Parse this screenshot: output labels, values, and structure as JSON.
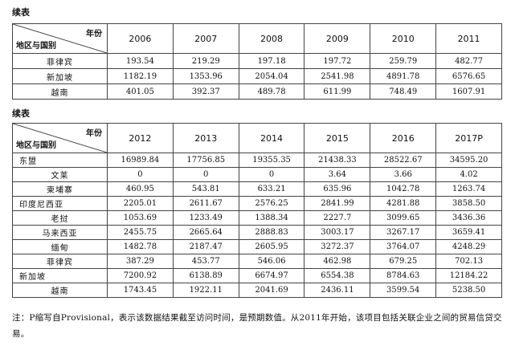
{
  "table1": {
    "caption": "续表",
    "header_top": "年份",
    "header_bottom": "地区与国别",
    "years": [
      "2006",
      "2007",
      "2008",
      "2009",
      "2010",
      "2011"
    ],
    "rows": [
      {
        "name": "菲律宾",
        "values": [
          "193.54",
          "219.29",
          "197.18",
          "197.72",
          "259.79",
          "482.77"
        ]
      },
      {
        "name": "新加坡",
        "values": [
          "1182.19",
          "1353.96",
          "2054.04",
          "2541.98",
          "4891.78",
          "6576.65"
        ]
      },
      {
        "name": "越南",
        "values": [
          "401.05",
          "392.37",
          "489.78",
          "611.99",
          "748.49",
          "1607.91"
        ]
      }
    ]
  },
  "table2": {
    "caption": "续表",
    "header_top": "年份",
    "header_bottom": "地区与国别",
    "years": [
      "2012",
      "2013",
      "2014",
      "2015",
      "2016",
      "2017P"
    ],
    "rows": [
      {
        "name": "东盟",
        "values": [
          "16989.84",
          "17756.85",
          "19355.35",
          "21438.33",
          "28522.67",
          "34595.20"
        ]
      },
      {
        "name": "文莱",
        "values": [
          "0",
          "0",
          "0",
          "3.64",
          "3.66",
          "4.02"
        ]
      },
      {
        "name": "柬埔寨",
        "values": [
          "460.95",
          "543.81",
          "633.21",
          "635.96",
          "1042.78",
          "1263.74"
        ]
      },
      {
        "name": "印度尼西亚",
        "values": [
          "2205.01",
          "2611.67",
          "2576.25",
          "2841.99",
          "4281.88",
          "3858.50"
        ]
      },
      {
        "name": "老挝",
        "values": [
          "1053.69",
          "1233.49",
          "1388.34",
          "2227.7",
          "3099.65",
          "3436.36"
        ]
      },
      {
        "name": "马来西亚",
        "values": [
          "2455.75",
          "2665.64",
          "2888.83",
          "3003.17",
          "3267.17",
          "3659.41"
        ]
      },
      {
        "name": "缅甸",
        "values": [
          "1482.78",
          "2187.47",
          "2605.95",
          "3272.37",
          "3764.07",
          "4248.29"
        ]
      },
      {
        "name": "菲律宾",
        "values": [
          "387.29",
          "453.77",
          "546.06",
          "462.98",
          "679.25",
          "702.13"
        ]
      },
      {
        "name": "新加坡",
        "values": [
          "7200.92",
          "6138.89",
          "6674.97",
          "6554.38",
          "8784.63",
          "12184.22"
        ]
      },
      {
        "name": "越南",
        "values": [
          "1743.45",
          "1922.11",
          "2041.69",
          "2436.11",
          "3599.54",
          "5238.50"
        ]
      }
    ]
  },
  "note": "注：P缩写自Provisional，表示该数据结果截至访问时间，是预期数值。从2011年开始，该项目包括关联企业之间的贸易信贷交易。"
}
